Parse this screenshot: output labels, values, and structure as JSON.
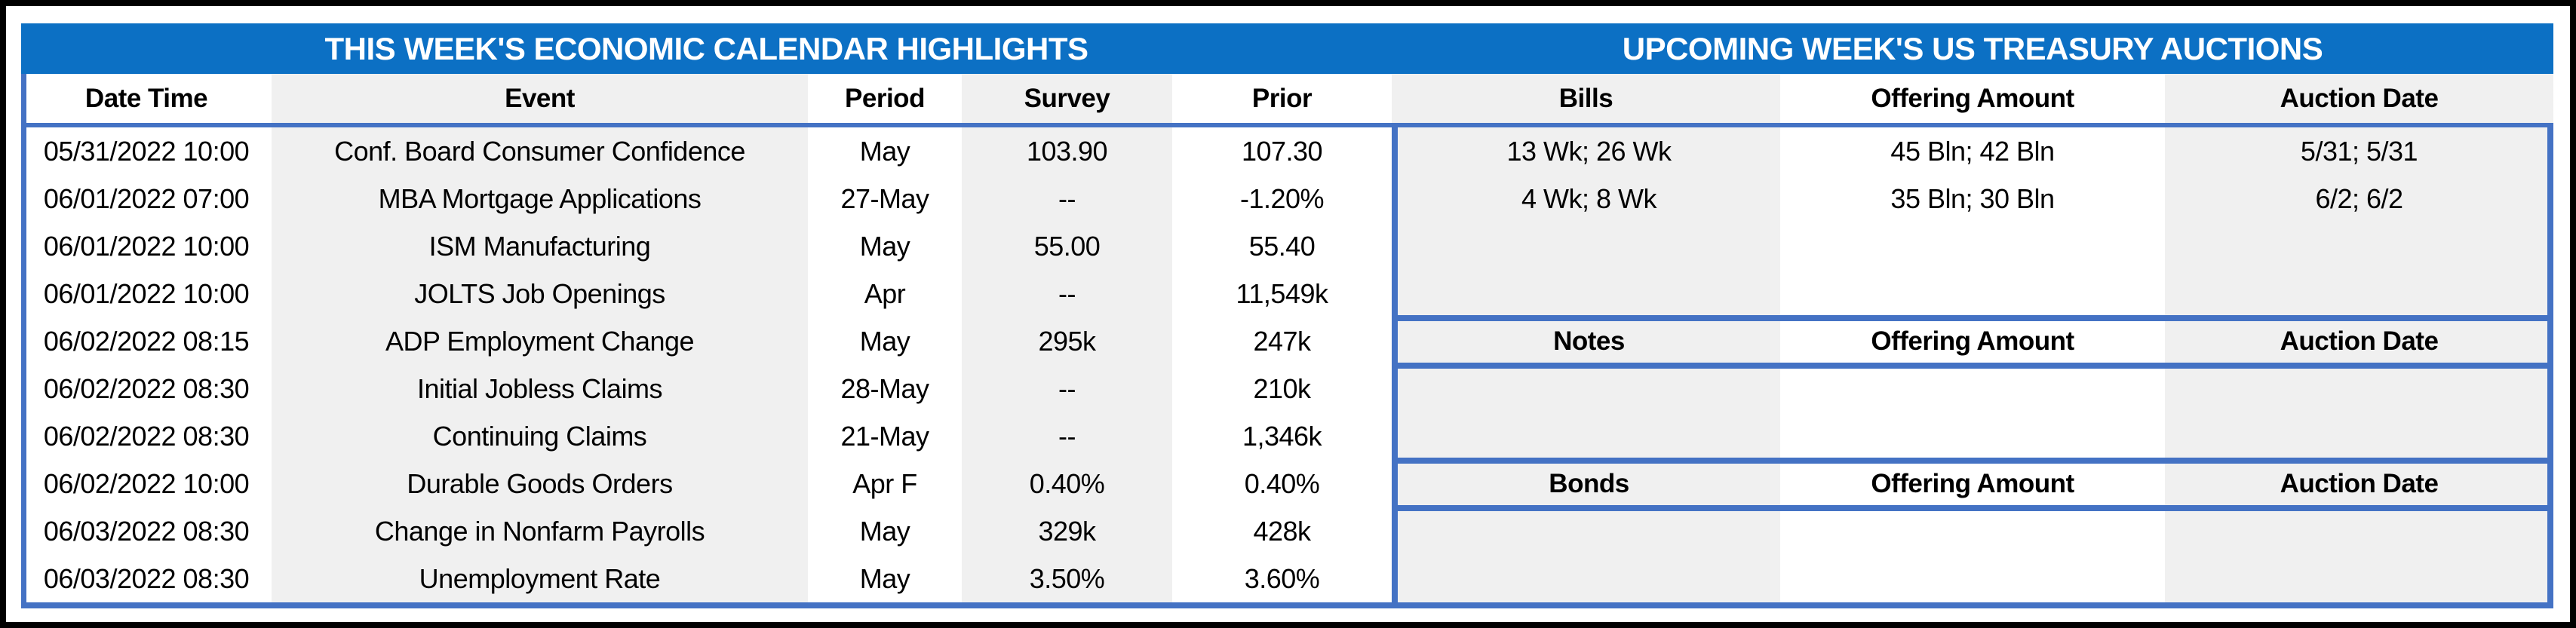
{
  "titles": {
    "left": "THIS WEEK'S ECONOMIC CALENDAR HIGHLIGHTS",
    "right": "UPCOMING WEEK'S US TREASURY AUCTIONS"
  },
  "calendar": {
    "headers": {
      "date_time": "Date Time",
      "event": "Event",
      "period": "Period",
      "survey": "Survey",
      "prior": "Prior"
    },
    "rows": [
      {
        "date_time": "05/31/2022 10:00",
        "event": "Conf. Board Consumer Confidence",
        "period": "May",
        "survey": "103.90",
        "prior": "107.30"
      },
      {
        "date_time": "06/01/2022 07:00",
        "event": "MBA Mortgage Applications",
        "period": "27-May",
        "survey": "--",
        "prior": "-1.20%"
      },
      {
        "date_time": "06/01/2022 10:00",
        "event": "ISM Manufacturing",
        "period": "May",
        "survey": "55.00",
        "prior": "55.40"
      },
      {
        "date_time": "06/01/2022 10:00",
        "event": "JOLTS Job Openings",
        "period": "Apr",
        "survey": "--",
        "prior": "11,549k"
      },
      {
        "date_time": "06/02/2022 08:15",
        "event": "ADP Employment Change",
        "period": "May",
        "survey": "295k",
        "prior": "247k"
      },
      {
        "date_time": "06/02/2022 08:30",
        "event": "Initial Jobless Claims",
        "period": "28-May",
        "survey": "--",
        "prior": "210k"
      },
      {
        "date_time": "06/02/2022 08:30",
        "event": "Continuing Claims",
        "period": "21-May",
        "survey": "--",
        "prior": "1,346k"
      },
      {
        "date_time": "06/02/2022 10:00",
        "event": "Durable Goods Orders",
        "period": "Apr F",
        "survey": "0.40%",
        "prior": "0.40%"
      },
      {
        "date_time": "06/03/2022 08:30",
        "event": "Change in Nonfarm Payrolls",
        "period": "May",
        "survey": "329k",
        "prior": "428k"
      },
      {
        "date_time": "06/03/2022 08:30",
        "event": "Unemployment Rate",
        "period": "May",
        "survey": "3.50%",
        "prior": "3.60%"
      }
    ]
  },
  "auctions": {
    "bills": {
      "label": "Bills",
      "offering_header": "Offering Amount",
      "auction_date_header": "Auction Date",
      "rows": [
        {
          "security": "13 Wk; 26 Wk",
          "offering": "45 Bln; 42 Bln",
          "date": "5/31; 5/31"
        },
        {
          "security": "4 Wk; 8 Wk",
          "offering": "35 Bln; 30 Bln",
          "date": "6/2; 6/2"
        }
      ]
    },
    "notes": {
      "label": "Notes",
      "offering_header": "Offering Amount",
      "auction_date_header": "Auction Date",
      "rows": []
    },
    "bonds": {
      "label": "Bonds",
      "offering_header": "Offering Amount",
      "auction_date_header": "Auction Date",
      "rows": []
    }
  },
  "colors": {
    "band_blue": "#0C70C4",
    "line_blue": "#4472C4",
    "stripe_gray": "#F0F0F0"
  }
}
